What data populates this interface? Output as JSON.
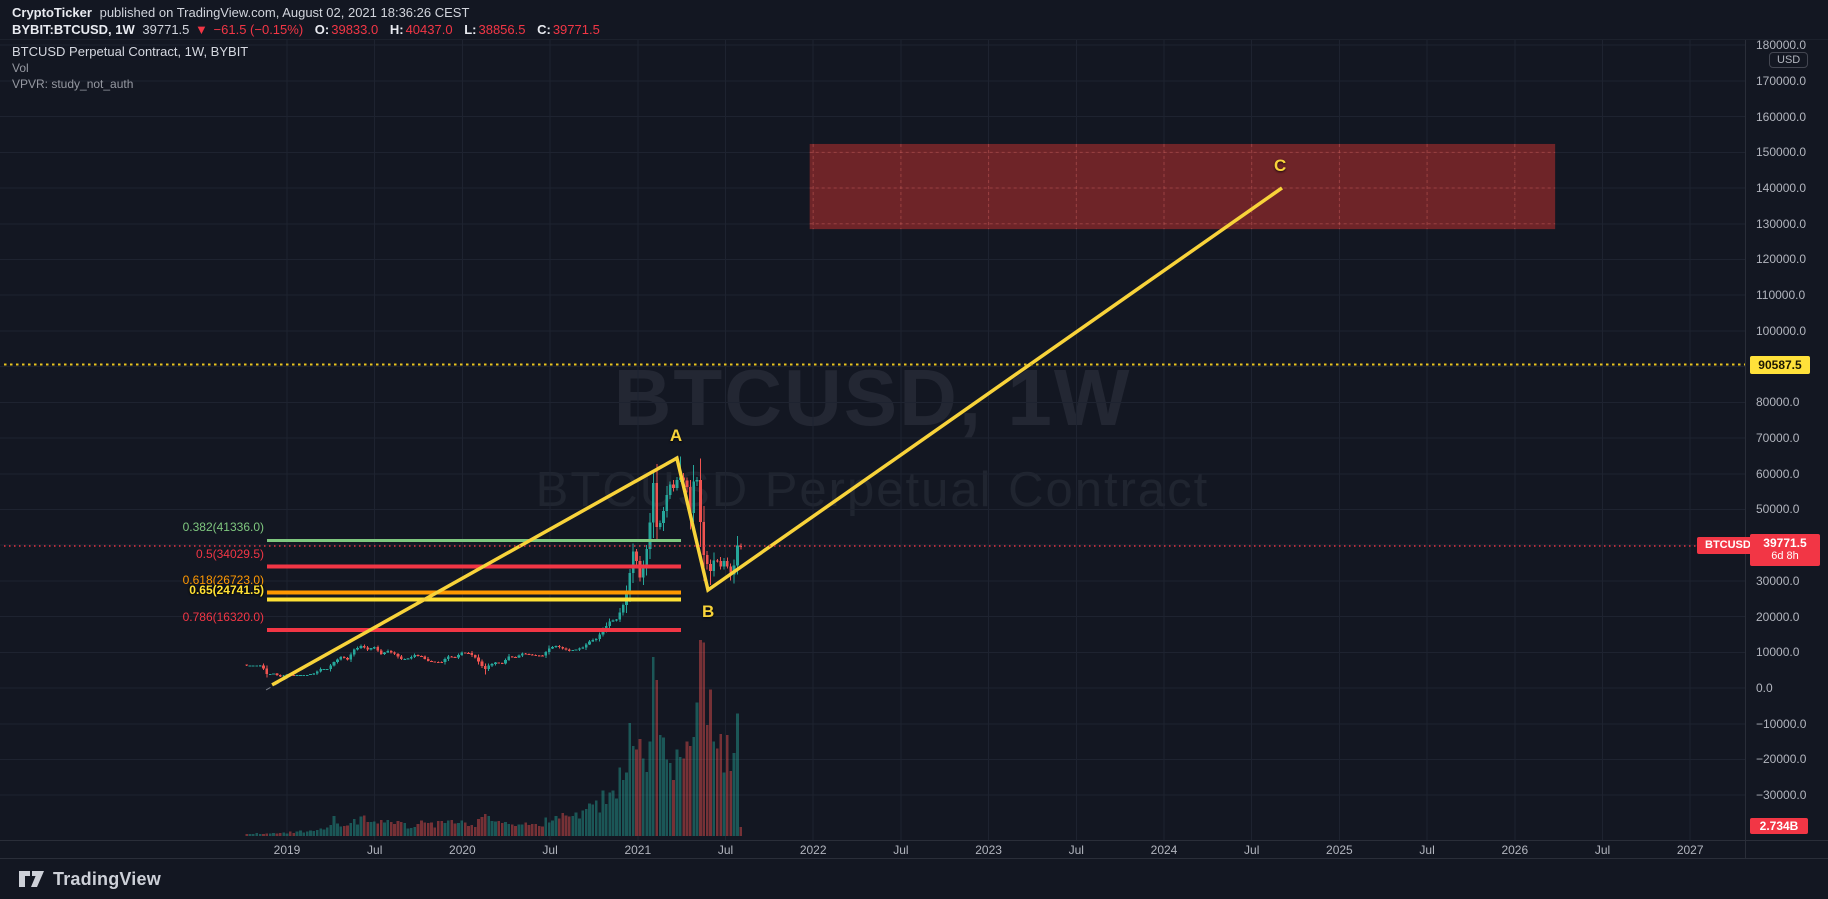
{
  "header": {
    "author": "CryptoTicker",
    "published": "published on TradingView.com, August 02, 2021 18:36:26 CEST",
    "symbol": "BYBIT:BTCUSD, 1W",
    "last_price": "39771.5",
    "direction_icon": "▼",
    "change": "−61.5 (−0.15%)",
    "ohlc": [
      {
        "label": "O:",
        "value": "39833.0"
      },
      {
        "label": "H:",
        "value": "40437.0"
      },
      {
        "label": "L:",
        "value": "38856.5"
      },
      {
        "label": "C:",
        "value": "39771.5"
      }
    ]
  },
  "legend": {
    "title": "BTCUSD Perpetual Contract, 1W, BYBIT",
    "volume_study": "Vol",
    "vpvr_study": "VPVR: study_not_auth"
  },
  "watermark": {
    "line1": "BTCUSD, 1W",
    "line2": "BTCUSD Perpetual Contract"
  },
  "axis_badges": {
    "usd": "USD",
    "alert": "90587.5",
    "symbol_chip": "BTCUSD",
    "price": "39771.5",
    "countdown": "6d 8h",
    "volume": "2.734B"
  },
  "footer": {
    "brand": "TradingView"
  },
  "colors": {
    "background": "#131722",
    "up": "#26a69a",
    "down": "#ef5350",
    "accent_red": "#f23645",
    "yellow": "#f8d33a",
    "target_zone": "rgba(185,48,45,0.55)",
    "grid": "#1e2330"
  },
  "chart_data": {
    "type": "candlestick",
    "symbol": "BTCUSD Perpetual Contract",
    "exchange": "BYBIT",
    "timeframe": "1W",
    "unit": "USD",
    "current_price": 39771.5,
    "current_week_ohlc": {
      "open": 39833.0,
      "high": 40437.0,
      "low": 38856.5,
      "close": 39771.5
    },
    "alert_price": 90587.5,
    "latest_volume": "2.734B",
    "y_axis": {
      "min": -30000,
      "max": 180000,
      "step": 10000
    },
    "x_axis": {
      "labels": [
        "2019",
        "Jul",
        "2020",
        "Jul",
        "2021",
        "Jul",
        "2022",
        "Jul",
        "2023",
        "Jul",
        "2024",
        "Jul",
        "2025",
        "Jul",
        "2026",
        "Jul",
        "2027"
      ]
    },
    "fib_levels": [
      {
        "ratio": 0.382,
        "price": 41336.0,
        "label": "0.382(41336.0)",
        "color": "#7fc77f",
        "width": 3
      },
      {
        "ratio": 0.5,
        "price": 34029.5,
        "label": "0.5(34029.5)",
        "color": "#f23645",
        "width": 4
      },
      {
        "ratio": 0.618,
        "price": 26723.0,
        "label": "0.618(26723.0)",
        "color": "#ff9800",
        "width": 4
      },
      {
        "ratio": 0.65,
        "price": 24741.5,
        "label": "0.65(24741.5)",
        "color": "#ffe135",
        "width": 4,
        "bold": true
      },
      {
        "ratio": 0.786,
        "price": 16320.0,
        "label": "0.786(16320.0)",
        "color": "#f23645",
        "width": 4
      }
    ],
    "fib_span": {
      "year_start": 2018.885,
      "year_end": 2021.245,
      "low": 3069.5,
      "high": 64989
    },
    "points": {
      "start": {
        "year": 2018.915,
        "price": 870
      },
      "A": {
        "label": "A",
        "year": 2021.223,
        "price": 64400
      },
      "B": {
        "label": "B",
        "year": 2021.4,
        "price": 27450
      },
      "C": {
        "label": "C",
        "year": 2024.673,
        "price": 140030
      }
    },
    "target_zone": {
      "year_start": 2021.98,
      "year_end": 2026.23,
      "price_top": 152350,
      "price_bottom": 128500
    },
    "weeks_start_year": 2018.77,
    "candle_close_anchors": [
      [
        0,
        6300
      ],
      [
        4,
        6350
      ],
      [
        5,
        5500
      ],
      [
        6,
        3900
      ],
      [
        8,
        4050
      ],
      [
        10,
        3250
      ],
      [
        12,
        3850
      ],
      [
        14,
        3550
      ],
      [
        16,
        3620
      ],
      [
        18,
        3680
      ],
      [
        20,
        4050
      ],
      [
        22,
        5300
      ],
      [
        24,
        5350
      ],
      [
        26,
        7300
      ],
      [
        28,
        8750
      ],
      [
        30,
        8050
      ],
      [
        32,
        10750
      ],
      [
        34,
        11800
      ],
      [
        36,
        10850
      ],
      [
        38,
        11450
      ],
      [
        40,
        9550
      ],
      [
        42,
        10350
      ],
      [
        44,
        9600
      ],
      [
        46,
        8100
      ],
      [
        48,
        8250
      ],
      [
        50,
        9250
      ],
      [
        52,
        8800
      ],
      [
        54,
        7550
      ],
      [
        56,
        7300
      ],
      [
        58,
        7250
      ],
      [
        60,
        8900
      ],
      [
        62,
        8600
      ],
      [
        64,
        9900
      ],
      [
        66,
        9850
      ],
      [
        68,
        8600
      ],
      [
        70,
        6200
      ],
      [
        71,
        5300
      ],
      [
        72,
        6250
      ],
      [
        74,
        7100
      ],
      [
        76,
        6900
      ],
      [
        78,
        8900
      ],
      [
        80,
        8550
      ],
      [
        82,
        9700
      ],
      [
        84,
        9450
      ],
      [
        86,
        9150
      ],
      [
        88,
        9100
      ],
      [
        90,
        11100
      ],
      [
        92,
        11800
      ],
      [
        94,
        11050
      ],
      [
        96,
        10450
      ],
      [
        98,
        10750
      ],
      [
        100,
        11350
      ],
      [
        102,
        13050
      ],
      [
        104,
        13800
      ],
      [
        106,
        16100
      ],
      [
        108,
        18700
      ],
      [
        110,
        19150
      ],
      [
        112,
        23250
      ],
      [
        113,
        26450
      ],
      [
        114,
        32200
      ],
      [
        115,
        38200
      ],
      [
        116,
        35600
      ],
      [
        117,
        30900
      ],
      [
        118,
        34300
      ],
      [
        119,
        38900
      ],
      [
        120,
        46350
      ],
      [
        121,
        57400
      ],
      [
        122,
        45150
      ],
      [
        123,
        46150
      ],
      [
        124,
        49600
      ],
      [
        125,
        54100
      ],
      [
        126,
        57050
      ],
      [
        127,
        55950
      ],
      [
        128,
        58250
      ],
      [
        129,
        59000
      ],
      [
        130,
        58100
      ],
      [
        131,
        56250
      ],
      [
        132,
        49050
      ],
      [
        133,
        57850
      ],
      [
        134,
        58250
      ],
      [
        135,
        46450
      ],
      [
        136,
        37300
      ],
      [
        137,
        34700
      ],
      [
        138,
        32800
      ],
      [
        139,
        35650
      ],
      [
        140,
        35600
      ],
      [
        141,
        34000
      ],
      [
        142,
        35600
      ],
      [
        143,
        34050
      ],
      [
        144,
        31800
      ],
      [
        145,
        34290
      ],
      [
        146,
        39850
      ],
      [
        147,
        39771.5
      ]
    ],
    "wick_overrides": {
      "71": {
        "low": 3850
      },
      "129": {
        "high": 64850
      },
      "136": {
        "low": 30000
      },
      "138": {
        "low": 28800
      },
      "145": {
        "low": 29300
      },
      "146": {
        "high": 42600
      },
      "147": {
        "open": 39833,
        "high": 40437,
        "low": 38856.5,
        "close": 39771.5
      }
    },
    "volume_rel_anchors": [
      [
        0,
        2
      ],
      [
        10,
        3
      ],
      [
        20,
        5
      ],
      [
        24,
        8
      ],
      [
        26,
        18
      ],
      [
        28,
        10
      ],
      [
        32,
        14
      ],
      [
        36,
        18
      ],
      [
        40,
        14
      ],
      [
        44,
        12
      ],
      [
        48,
        10
      ],
      [
        52,
        16
      ],
      [
        56,
        12
      ],
      [
        60,
        14
      ],
      [
        64,
        12
      ],
      [
        68,
        10
      ],
      [
        70,
        26
      ],
      [
        72,
        18
      ],
      [
        76,
        12
      ],
      [
        80,
        13
      ],
      [
        84,
        11
      ],
      [
        88,
        12
      ],
      [
        92,
        22
      ],
      [
        96,
        16
      ],
      [
        100,
        22
      ],
      [
        104,
        30
      ],
      [
        106,
        35
      ],
      [
        108,
        48
      ],
      [
        110,
        42
      ],
      [
        112,
        65
      ],
      [
        114,
        95
      ],
      [
        115,
        105
      ],
      [
        116,
        88
      ],
      [
        117,
        75
      ],
      [
        118,
        70
      ],
      [
        119,
        85
      ],
      [
        120,
        120
      ],
      [
        121,
        175
      ],
      [
        122,
        165
      ],
      [
        123,
        90
      ],
      [
        124,
        100
      ],
      [
        125,
        85
      ],
      [
        126,
        80
      ],
      [
        127,
        70
      ],
      [
        128,
        75
      ],
      [
        129,
        85
      ],
      [
        130,
        110
      ],
      [
        131,
        90
      ],
      [
        132,
        80
      ],
      [
        133,
        95
      ],
      [
        134,
        105
      ],
      [
        135,
        170
      ],
      [
        136,
        200
      ],
      [
        137,
        150
      ],
      [
        138,
        120
      ],
      [
        139,
        95
      ],
      [
        140,
        85
      ],
      [
        141,
        100
      ],
      [
        142,
        75
      ],
      [
        143,
        90
      ],
      [
        144,
        55
      ],
      [
        145,
        65
      ],
      [
        146,
        97
      ],
      [
        147,
        9
      ]
    ]
  }
}
